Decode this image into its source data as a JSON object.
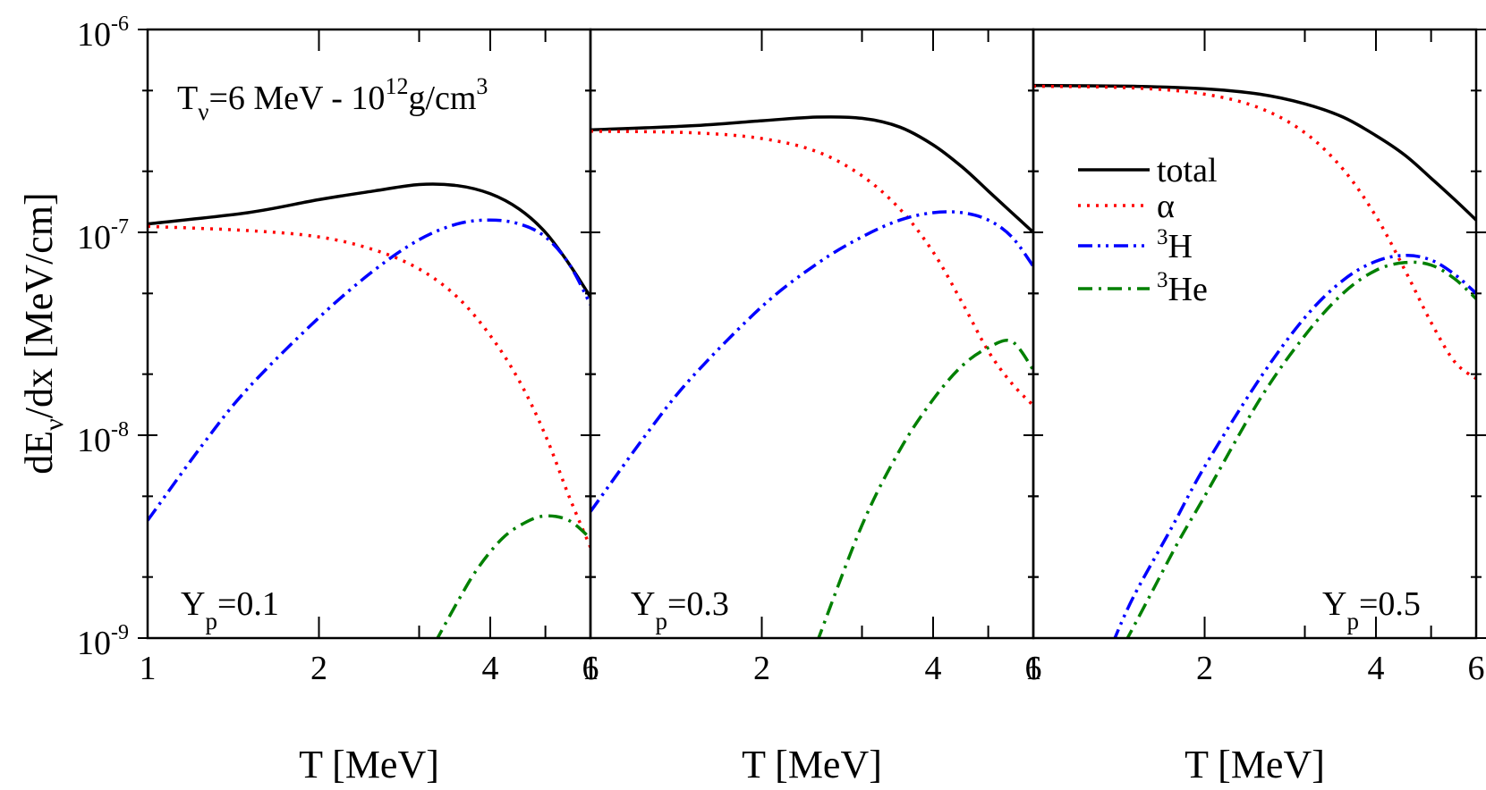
{
  "chart_data": {
    "type": "line",
    "title": "",
    "annotation": {
      "prefix": "T",
      "prefix_sub": "ν",
      "mid": "=6 MeV - 10",
      "exponent": "12",
      "mid2": "g/cm",
      "exponent2": "3"
    },
    "ylabel": {
      "prefix": "dE",
      "sub": "ν",
      "suffix": "/dx [MeV/cm]"
    },
    "xlabel": "T [MeV]",
    "xscale": "log",
    "yscale": "log",
    "xlim": [
      1,
      6
    ],
    "ylim": [
      1e-09,
      1e-06
    ],
    "y_ticks": [
      {
        "value": 1e-06,
        "base": "10",
        "exp": "-6"
      },
      {
        "value": 1e-07,
        "base": "10",
        "exp": "-7"
      },
      {
        "value": 1e-08,
        "base": "10",
        "exp": "-8"
      },
      {
        "value": 1e-09,
        "base": "10",
        "exp": "-9"
      }
    ],
    "x_ticks": [
      {
        "value": 1,
        "label": "1"
      },
      {
        "value": 2,
        "label": "2"
      },
      {
        "value": 4,
        "label": "4"
      },
      {
        "value": 6,
        "label": "6"
      }
    ],
    "legend": {
      "position": "right-middle",
      "entries": [
        {
          "series": "total",
          "label": "total",
          "sup": ""
        },
        {
          "series": "alpha",
          "label": "α",
          "sup": ""
        },
        {
          "series": "H3",
          "label": "H",
          "sup": "3"
        },
        {
          "series": "He3",
          "label": "He",
          "sup": "3"
        }
      ]
    },
    "series_styles": {
      "total": {
        "color": "#000000",
        "dash": "",
        "width": 3.5
      },
      "alpha": {
        "color": "#ff0000",
        "dash": "3 7",
        "width": 3.5
      },
      "H3": {
        "color": "#0000ff",
        "dash": "16 6 3 6 3 6",
        "width": 3.5
      },
      "He3": {
        "color": "#008000",
        "dash": "16 7 3 7",
        "width": 3.5
      }
    },
    "panels": [
      {
        "label": "Y",
        "label_sub": "p",
        "label_value": "=0.1",
        "series": [
          {
            "name": "total",
            "x": [
              1,
              1.5,
              2,
              2.5,
              3,
              3.5,
              4,
              4.5,
              5,
              5.5,
              6
            ],
            "y": [
              1.1e-07,
              1.25e-07,
              1.45e-07,
              1.6e-07,
              1.72e-07,
              1.7e-07,
              1.55e-07,
              1.3e-07,
              1e-07,
              7e-08,
              4.8e-08
            ]
          },
          {
            "name": "alpha",
            "x": [
              1,
              1.5,
              2,
              2.5,
              3,
              3.5,
              4,
              4.5,
              5,
              5.5,
              6
            ],
            "y": [
              1.07e-07,
              1.02e-07,
              9.5e-08,
              8.2e-08,
              6.6e-08,
              4.8e-08,
              3.1e-08,
              1.85e-08,
              1e-08,
              5e-09,
              2.8e-09
            ]
          },
          {
            "name": "H3",
            "x": [
              1,
              1.25,
              1.5,
              2,
              2.5,
              3,
              3.5,
              4,
              4.5,
              5,
              5.5,
              6
            ],
            "y": [
              3.8e-09,
              9e-09,
              1.7e-08,
              3.8e-08,
              6.5e-08,
              9.2e-08,
              1.1e-07,
              1.15e-07,
              1.1e-07,
              9.5e-08,
              7e-08,
              4.4e-08
            ]
          },
          {
            "name": "He3",
            "x": [
              3.2,
              3.5,
              3.8,
              4.2,
              4.6,
              5.0,
              5.5,
              6
            ],
            "y": [
              9.5e-10,
              1.5e-09,
              2.2e-09,
              3.1e-09,
              3.7e-09,
              4e-09,
              3.8e-09,
              3.1e-09
            ]
          }
        ]
      },
      {
        "label": "Y",
        "label_sub": "p",
        "label_value": "=0.3",
        "series": [
          {
            "name": "total",
            "x": [
              1,
              1.5,
              2,
              2.5,
              3,
              3.5,
              4,
              4.5,
              5,
              5.5,
              6
            ],
            "y": [
              3.2e-07,
              3.35e-07,
              3.55e-07,
              3.7e-07,
              3.65e-07,
              3.3e-07,
              2.7e-07,
              2.1e-07,
              1.6e-07,
              1.25e-07,
              1e-07
            ]
          },
          {
            "name": "alpha",
            "x": [
              1,
              1.5,
              2,
              2.5,
              3,
              3.5,
              4,
              4.5,
              5,
              5.5,
              6
            ],
            "y": [
              3.15e-07,
              3.1e-07,
              2.9e-07,
              2.5e-07,
              1.9e-07,
              1.3e-07,
              8e-08,
              4.5e-08,
              2.6e-08,
              1.8e-08,
              1.4e-08
            ]
          },
          {
            "name": "H3",
            "x": [
              1,
              1.25,
              1.5,
              2,
              2.5,
              3,
              3.5,
              4,
              4.5,
              5,
              5.5,
              6
            ],
            "y": [
              4.2e-09,
              1e-08,
              1.9e-08,
              4.3e-08,
              7e-08,
              9.5e-08,
              1.15e-07,
              1.25e-07,
              1.25e-07,
              1.15e-07,
              9.5e-08,
              6.8e-08
            ]
          },
          {
            "name": "He3",
            "x": [
              2.5,
              3.0,
              3.5,
              4.0,
              4.5,
              5.0,
              5.5,
              6
            ],
            "y": [
              9.5e-10,
              3.6e-09,
              8.5e-09,
              1.5e-08,
              2.2e-08,
              2.7e-08,
              2.9e-08,
              2.1e-08
            ]
          }
        ]
      },
      {
        "label": "Y",
        "label_sub": "p",
        "label_value": "=0.5",
        "series": [
          {
            "name": "total",
            "x": [
              1,
              1.5,
              2,
              2.5,
              3,
              3.5,
              4,
              4.5,
              5,
              5.5,
              6
            ],
            "y": [
              5.3e-07,
              5.25e-07,
              5.1e-07,
              4.8e-07,
              4.3e-07,
              3.7e-07,
              3e-07,
              2.4e-07,
              1.85e-07,
              1.45e-07,
              1.15e-07
            ]
          },
          {
            "name": "alpha",
            "x": [
              1,
              1.5,
              2,
              2.5,
              3,
              3.5,
              4,
              4.5,
              5,
              5.5,
              6
            ],
            "y": [
              5.25e-07,
              5.15e-07,
              4.8e-07,
              4.1e-07,
              3.1e-07,
              2.05e-07,
              1.2e-07,
              6.5e-08,
              3.6e-08,
              2.3e-08,
              1.9e-08
            ]
          },
          {
            "name": "H3",
            "x": [
              1.38,
              1.5,
              1.75,
              2,
              2.5,
              3,
              3.5,
              4,
              4.5,
              5,
              5.5,
              6
            ],
            "y": [
              9.5e-10,
              1.6e-09,
              3.5e-09,
              7e-09,
              1.9e-08,
              3.8e-08,
              5.8e-08,
              7.2e-08,
              7.7e-08,
              7.3e-08,
              6.2e-08,
              5e-08
            ]
          },
          {
            "name": "He3",
            "x": [
              1.45,
              1.6,
              1.8,
              2,
              2.5,
              3,
              3.5,
              4,
              4.5,
              5,
              5.5,
              6
            ],
            "y": [
              9.5e-10,
              1.6e-09,
              3e-09,
              5e-09,
              1.5e-08,
              3.1e-08,
              5e-08,
              6.5e-08,
              7.1e-08,
              6.9e-08,
              5.9e-08,
              4.7e-08
            ]
          }
        ]
      }
    ]
  }
}
